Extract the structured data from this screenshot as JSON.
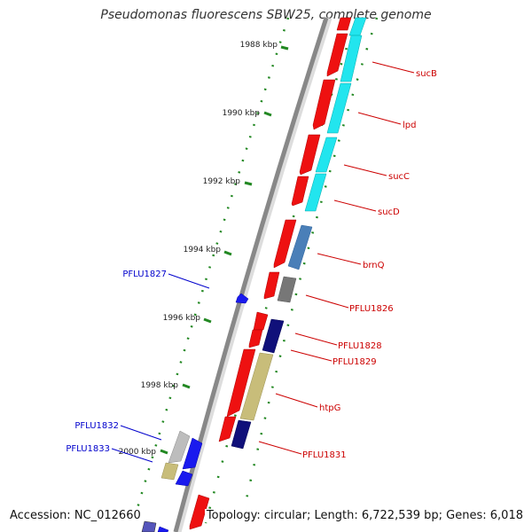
{
  "title": "Pseudomonas fluorescens SBW25, complete genome",
  "accession": "Accession: NC_012660",
  "topology": "Topology: circular; Length: 6,722,539 bp; Genes: 6,018",
  "ticks": [
    "1988 kbp",
    "1990 kbp",
    "1992 kbp",
    "1994 kbp",
    "1996 kbp",
    "1998 kbp",
    "2000 kbp"
  ],
  "genes_forward": [
    "sucB",
    "lpd",
    "sucC",
    "sucD",
    "brnQ",
    "PFLU1826",
    "PFLU1828",
    "PFLU1829",
    "htpG",
    "PFLU1831"
  ],
  "genes_reverse": [
    "PFLU1827",
    "PFLU1832",
    "PFLU1833"
  ],
  "colors": {
    "forward_label": "#cc0000",
    "reverse_label": "#0000cc",
    "cds_red": "#ee1111",
    "cyan": "#22e5ee",
    "steel_blue": "#4a7fb8",
    "gray": "#777777",
    "navy": "#10107a",
    "khaki": "#c8bd7a",
    "blue": "#1a1aee",
    "light_gray": "#bdbdbd",
    "tick_green": "#228822"
  }
}
